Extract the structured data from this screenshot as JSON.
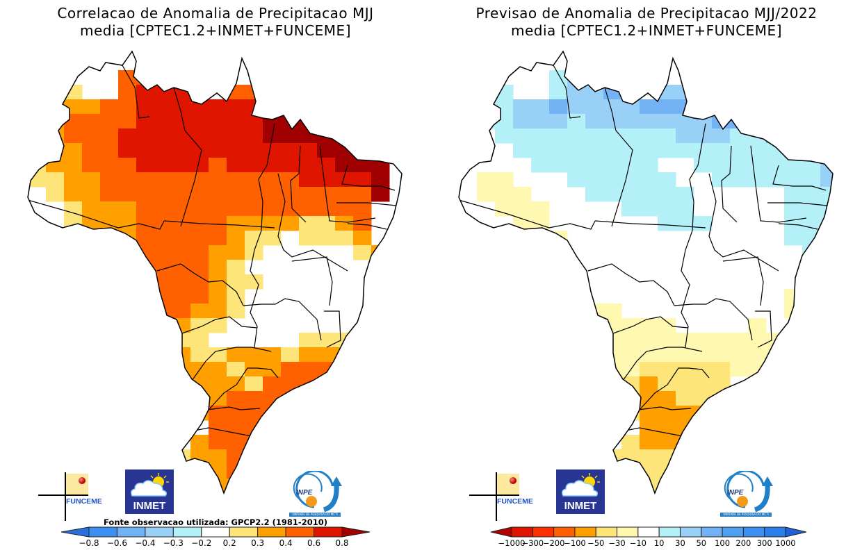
{
  "panels": [
    {
      "id": "correlation",
      "title_line1": "Correlacao de Anomalia de Precipitacao MJJ",
      "title_line2": "media [CPTEC1.2+INMET+FUNCEME]",
      "source_note": "Fonte observacao utilizada: GPCP2.2 (1981-2010)",
      "logos": {
        "funceme": "FUNCEME",
        "inmet": "INMET",
        "inpe": "INPE",
        "inpe_band": "UNIDADE DE PESQUISA DO MCTI"
      }
    },
    {
      "id": "forecast",
      "title_line1": "Previsao de Anomalia de Precipitacao MJJ/2022",
      "title_line2": "media [CPTEC1.2+INMET+FUNCEME]",
      "logos": {
        "funceme": "FUNCEME",
        "inmet": "INMET",
        "inpe": "INPE",
        "inpe_band": "UNIDADE DE PESQUISA DO MCTI"
      }
    }
  ],
  "chart_data": [
    {
      "type": "heatmap",
      "title": "Correlacao de Anomalia de Precipitacao MJJ",
      "subtitle": "media [CPTEC1.2+INMET+FUNCEME]",
      "region": "Brazil",
      "variable": "correlation of precipitation anomaly",
      "colorbar": {
        "ticks": [
          "-0.8",
          "-0.6",
          "-0.4",
          "-0.3",
          "-0.2",
          "0.2",
          "0.3",
          "0.4",
          "0.6",
          "0.8"
        ],
        "colors": [
          "#2a6fe0",
          "#3d8ff0",
          "#72b2f5",
          "#99d0f8",
          "#b4f0f8",
          "#ffffff",
          "#fee57a",
          "#ffa000",
          "#ff6000",
          "#e01500",
          "#a00000"
        ],
        "extend": "both"
      },
      "legend_position": "bottom",
      "grid_classes": {
        "0": "#ffffff",
        "1": "#fee57a",
        "2": "#ffa000",
        "3": "#ff6000",
        "4": "#e01500",
        "5": "#a00000"
      },
      "grid_rows": [
        "......3........3.....",
        ".....3333.......3....",
        "..1..3444..33333.....",
        ".2223344444444444....",
        ".2333344444445555....",
        "12333444444445555555.",
        "12233444444444445555.",
        "12233344443444444555.",
        "11223333333333344445.",
        ".1223333333333333335.",
        "..12223333333333333..",
        "..12223333322221123..",
        "....2233333211.1112..",
        "....2333332210.00012.",
        ".....23333210.000001.",
        ".....2333321100000...",
        ".....22333210000000..",
        "......2332210000000..",
        ".......221100000.00..",
        ".......2110000011110.",
        ".......22112221222210",
        "........2221223333310",
        "........2222133332...",
        "........22233333.....",
        ".........23333.......",
        "..........3332.......",
        ".........23332.......",
        "........1223332......",
        "........222333.......",
        ".........2222........"
      ]
    },
    {
      "type": "heatmap",
      "title": "Previsao de Anomalia de Precipitacao MJJ/2022",
      "subtitle": "media [CPTEC1.2+INMET+FUNCEME]",
      "region": "Brazil",
      "variable": "precipitation anomaly forecast (mm)",
      "colorbar": {
        "ticks": [
          "-1000",
          "-300",
          "-200",
          "-100",
          "-50",
          "-30",
          "-10",
          "10",
          "30",
          "50",
          "100",
          "200",
          "300",
          "1000"
        ],
        "colors": [
          "#b00000",
          "#e01500",
          "#ff3000",
          "#ff6000",
          "#ffa000",
          "#fee57a",
          "#fff8b0",
          "#ffffff",
          "#b4f0f8",
          "#99d0f8",
          "#72b2f5",
          "#50a0f0",
          "#3d8ff0",
          "#2a7fe8",
          "#2060d8"
        ],
        "extend": "both"
      },
      "legend_position": "bottom",
      "grid_classes": {
        "0": "#ffffff",
        "a": "#fff8b0",
        "b": "#fee57a",
        "c": "#ffa000",
        "1": "#b4f0f8",
        "2": "#99d0f8",
        "3": "#72b2f5",
        "4": "#50a0f0"
      },
      "grid_rows": [
        "......1........4.....",
        ".....1221.......3....",
        "..1..1223..22334.....",
        ".11223222233333334...",
        ".112221222222233334..",
        "0011111111112221133..",
        "0001111111111111112...",
        "000011111110011111112.",
        "0aa000111111001111112.",
        "0aaa0001111110000011112",
        "..aaa0000111100000111123",
        "..0aa00000011100001112..",
        "....aa000000000000112..",
        "....a000000000000001..",
        ".....00000000000000...",
        ".....0000000000000....",
        ".....0000000000000a...",
        "......aaa000000000a...",
        ".......aaaaa0000a.....",
        ".......aaaaaaaaaaaa...",
        "........aaaaaaaaaaa...",
        "........aabbbbbaa.....",
        "........bbcbbbb.......",
        "........bbccbbb.......",
        ".........bcccc........",
        "..........cccb........",
        ".........bcccb........",
        "........bbbbbb........",
        "........bbbbb.........",
        ".........bbb.........."
      ]
    }
  ]
}
